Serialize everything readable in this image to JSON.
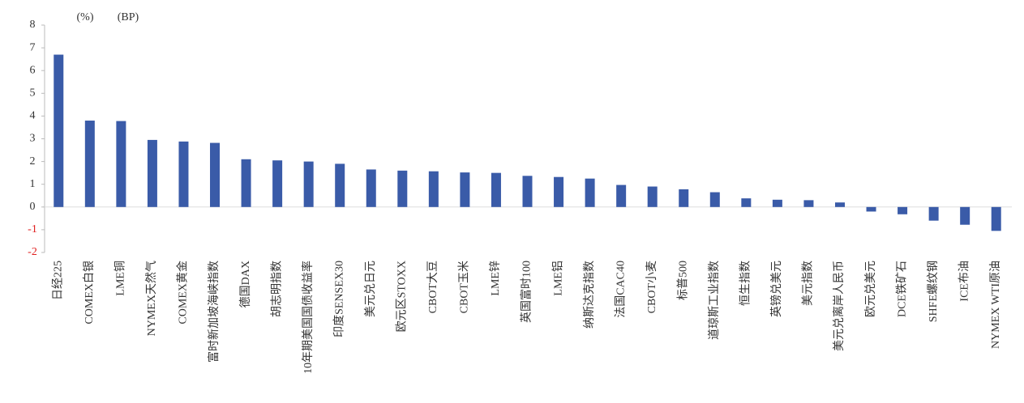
{
  "chart_data": {
    "type": "bar",
    "annotations": [
      "(%)",
      "(BP)"
    ],
    "categories": [
      "日经225",
      "COMEX白银",
      "LME铜",
      "NYMEX天然气",
      "COMEX黄金",
      "富时新加坡海峡指数",
      "德国DAX",
      "胡志明指数",
      "10年期美国国债收益率",
      "印度SENSEX30",
      "美元兑日元",
      "欧元区STOXX",
      "CBOT大豆",
      "CBOT玉米",
      "LME锌",
      "英国富时100",
      "LME铝",
      "纳斯达克指数",
      "法国CAC40",
      "CBOT小麦",
      "标普500",
      "道琼斯工业指数",
      "恒生指数",
      "英镑兑美元",
      "美元指数",
      "美元兑离岸人民币",
      "欧元兑美元",
      "DCE铁矿石",
      "SHFE螺纹钢",
      "ICE布油",
      "NYMEX WTI原油"
    ],
    "values": [
      6.7,
      3.8,
      3.78,
      2.95,
      2.88,
      2.82,
      2.1,
      2.05,
      2.0,
      1.9,
      1.65,
      1.6,
      1.57,
      1.52,
      1.5,
      1.37,
      1.32,
      1.25,
      0.97,
      0.9,
      0.78,
      0.65,
      0.38,
      0.32,
      0.3,
      0.2,
      -0.2,
      -0.32,
      -0.6,
      -0.78,
      -1.05
    ],
    "color": "#3a5ba8",
    "negative_tick_color": "#e02020",
    "ylim": [
      -2,
      8
    ],
    "yticks": [
      -2,
      -1,
      0,
      1,
      2,
      3,
      4,
      5,
      6,
      7,
      8
    ],
    "grid": false
  }
}
